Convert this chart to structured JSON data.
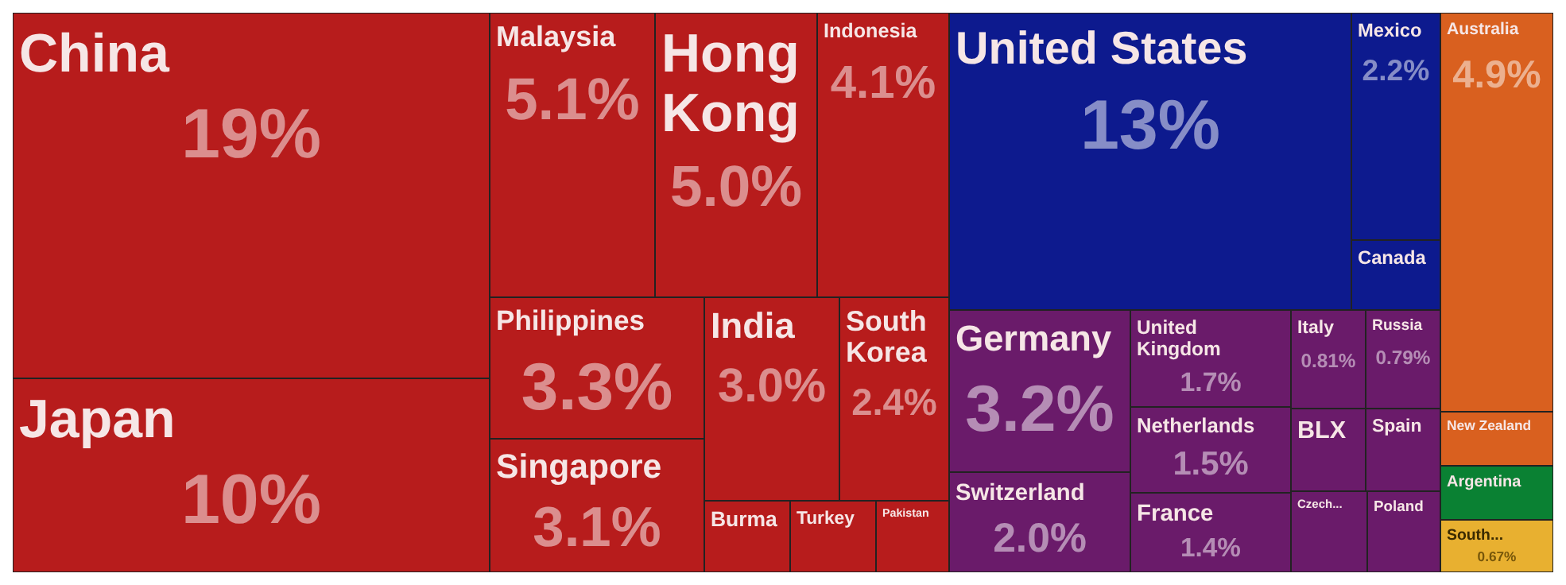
{
  "chart_data": {
    "type": "other",
    "categories": [
      "China",
      "Japan",
      "Malaysia",
      "Hong Kong",
      "Indonesia",
      "Philippines",
      "Singapore",
      "India",
      "South Korea",
      "Burma",
      "Turkey",
      "Pakistan",
      "United States",
      "Mexico",
      "Canada",
      "Germany",
      "Switzerland",
      "United Kingdom",
      "Netherlands",
      "France",
      "Italy",
      "Russia",
      "BLX",
      "Spain",
      "Czech...",
      "Poland",
      "Australia",
      "New Zealand",
      "Argentina",
      "South..."
    ],
    "values": [
      19,
      10,
      5.1,
      5.0,
      4.1,
      3.3,
      3.1,
      3.0,
      2.4,
      null,
      null,
      null,
      13,
      2.2,
      null,
      3.2,
      2.0,
      1.7,
      1.5,
      1.4,
      0.81,
      0.79,
      null,
      null,
      null,
      null,
      4.9,
      null,
      null,
      0.67
    ],
    "value_labels": [
      "19%",
      "10%",
      "5.1%",
      "5.0%",
      "4.1%",
      "3.3%",
      "3.1%",
      "3.0%",
      "2.4%",
      null,
      null,
      null,
      "13%",
      "2.2%",
      null,
      "3.2%",
      "2.0%",
      "1.7%",
      "1.5%",
      "1.4%",
      "0.81%",
      "0.79%",
      null,
      null,
      null,
      null,
      "4.9%",
      null,
      null,
      "0.67%"
    ],
    "colors": [
      "#b71c1c",
      "#b71c1c",
      "#b71c1c",
      "#b71c1c",
      "#b71c1c",
      "#b71c1c",
      "#b71c1c",
      "#b71c1c",
      "#b71c1c",
      "#b71c1c",
      "#b71c1c",
      "#b71c1c",
      "#0d1a8e",
      "#0d1a8e",
      "#0d1a8e",
      "#6a1b6a",
      "#6a1b6a",
      "#6a1b6a",
      "#6a1b6a",
      "#6a1b6a",
      "#6a1b6a",
      "#6a1b6a",
      "#6a1b6a",
      "#6a1b6a",
      "#6a1b6a",
      "#6a1b6a",
      "#d9601f",
      "#d9601f",
      "#0a8133",
      "#e8b030"
    ]
  }
}
